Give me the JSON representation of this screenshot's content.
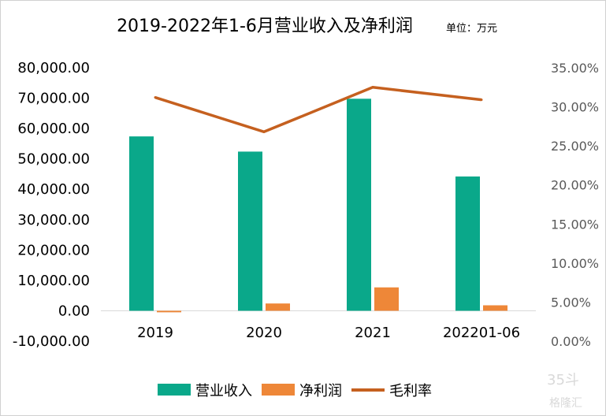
{
  "chart_data": {
    "type": "bar",
    "title": "2019-2022年1-6月营业收入及净利润",
    "unit_note": "单位：万元",
    "categories": [
      "2019",
      "2020",
      "2021",
      "202201-06"
    ],
    "series": [
      {
        "name": "营业收入",
        "type": "bar",
        "axis": "left",
        "color": "#0aa88a",
        "values": [
          57400,
          52400,
          69800,
          44200
        ]
      },
      {
        "name": "净利润",
        "type": "bar",
        "axis": "left",
        "color": "#ee8738",
        "values": [
          -500,
          2400,
          7700,
          1800
        ]
      },
      {
        "name": "毛利率",
        "type": "line",
        "axis": "right",
        "color": "#c5601f",
        "values": [
          31.2,
          26.8,
          32.5,
          30.9
        ]
      }
    ],
    "y_left": {
      "ylim": [
        -10000,
        80000
      ],
      "ticks": [
        80000,
        70000,
        60000,
        50000,
        40000,
        30000,
        20000,
        10000,
        0,
        -10000
      ],
      "tick_labels": [
        "80,000.00",
        "70,000.00",
        "60,000.00",
        "50,000.00",
        "40,000.00",
        "30,000.00",
        "20,000.00",
        "10,000.00",
        "0.00",
        "-10,000.00"
      ]
    },
    "y_right": {
      "ylim": [
        0,
        35
      ],
      "ticks": [
        35,
        30,
        25,
        20,
        15,
        10,
        5,
        0
      ],
      "tick_labels": [
        "35.00%",
        "30.00%",
        "25.00%",
        "20.00%",
        "15.00%",
        "10.00%",
        "5.00%",
        "0.00%"
      ]
    },
    "grid": false,
    "legend_position": "bottom"
  },
  "watermark": {
    "top": "35斗",
    "bottom": "格隆汇"
  }
}
